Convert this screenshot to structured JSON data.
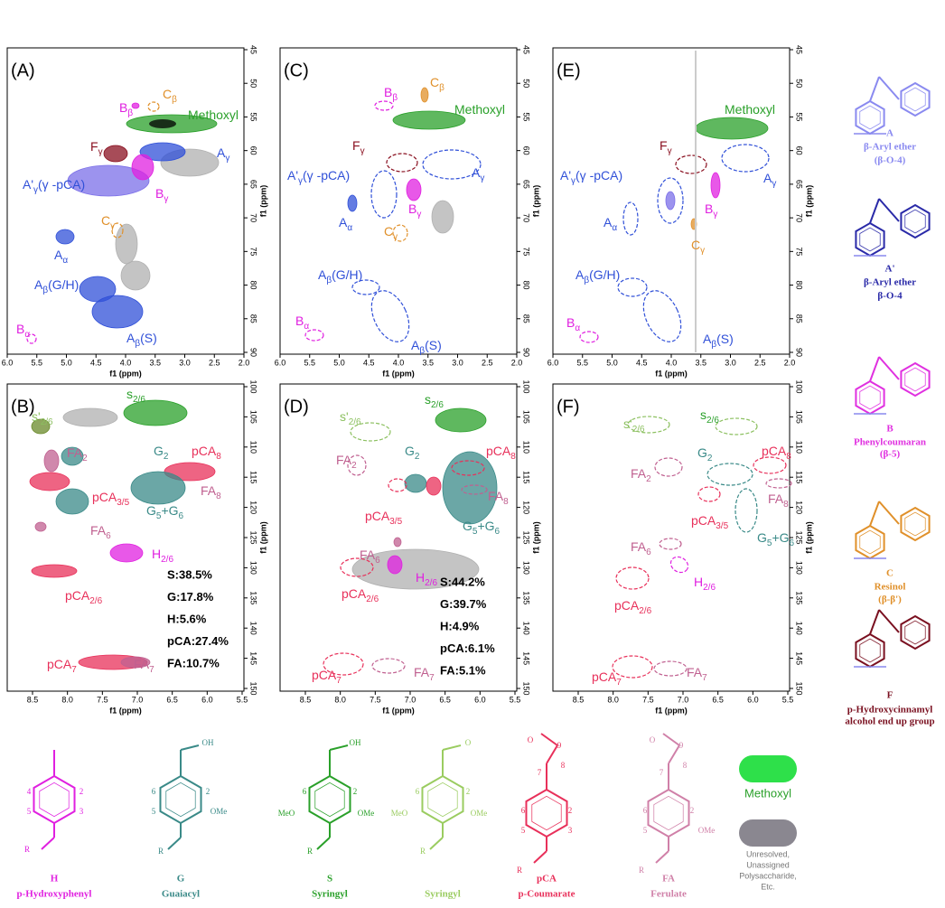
{
  "axes": {
    "label": "f1 (ppm)",
    "top_x": [
      "6.0",
      "5.5",
      "5.0",
      "4.5",
      "4.0",
      "3.5",
      "3.0",
      "2.5",
      "2.0"
    ],
    "top_y": [
      "45",
      "50",
      "55",
      "60",
      "65",
      "70",
      "75",
      "80",
      "85",
      "90"
    ],
    "bottom_x": [
      "8.5",
      "8.0",
      "7.5",
      "7.0",
      "6.5",
      "6.0",
      "5.5"
    ],
    "bottom_y": [
      "100",
      "105",
      "110",
      "115",
      "120",
      "125",
      "130",
      "135",
      "140",
      "145",
      "150"
    ]
  },
  "panels": [
    {
      "letter": "(A)",
      "labels": [
        [
          "C",
          "β"
        ],
        [
          "B",
          "β"
        ],
        [
          "Methoxyl"
        ],
        [
          "F",
          "γ"
        ],
        [
          "A",
          "γ"
        ],
        [
          "A'",
          "γ",
          "(γ -pCA)"
        ],
        [
          "B",
          "γ"
        ],
        [
          "C",
          "γ"
        ],
        [
          "A",
          "α"
        ],
        [
          "A",
          "β",
          "(G/H)"
        ],
        [
          "A",
          "β",
          "(S)"
        ],
        [
          "B",
          "α"
        ]
      ]
    },
    {
      "letter": "(B)",
      "labels": [
        [
          "s'",
          "2/6"
        ],
        [
          "s",
          "2/6"
        ],
        [
          "FA",
          "2"
        ],
        [
          "G",
          "2"
        ],
        [
          "pCA",
          "8"
        ],
        [
          "pCA",
          "3/5"
        ],
        [
          "FA",
          "8"
        ],
        [
          "G",
          "5",
          "+G",
          "6"
        ],
        [
          "FA",
          "6"
        ],
        [
          "H",
          "2/6"
        ],
        [
          "pCA",
          "2/6"
        ],
        [
          "pCA",
          "7"
        ],
        [
          "FA",
          "7"
        ]
      ],
      "composition": [
        "S:38.5%",
        "G:17.8%",
        "H:5.6%",
        "pCA:27.4%",
        "FA:10.7%"
      ]
    },
    {
      "letter": "(C)",
      "labels": [
        [
          "C",
          "β"
        ],
        [
          "B",
          "β"
        ],
        [
          "Methoxyl"
        ],
        [
          "F",
          "γ"
        ],
        [
          "A",
          "γ"
        ],
        [
          "A'",
          "γ",
          "(γ -pCA)"
        ],
        [
          "B",
          "γ"
        ],
        [
          "C",
          "γ"
        ],
        [
          "A",
          "α"
        ],
        [
          "A",
          "β",
          "(G/H)"
        ],
        [
          "A",
          "β",
          "(S)"
        ],
        [
          "B",
          "α"
        ]
      ]
    },
    {
      "letter": "(D)",
      "labels": [
        [
          "s'",
          "2/6"
        ],
        [
          "s",
          "2/6"
        ],
        [
          "FA",
          "2"
        ],
        [
          "G",
          "2"
        ],
        [
          "pCA",
          "8"
        ],
        [
          "pCA",
          "3/5"
        ],
        [
          "FA",
          "8"
        ],
        [
          "G",
          "5",
          "+G",
          "6"
        ],
        [
          "FA",
          "6"
        ],
        [
          "H",
          "2/6"
        ],
        [
          "pCA",
          "2/6"
        ],
        [
          "pCA",
          "7"
        ],
        [
          "FA",
          "7"
        ]
      ],
      "composition": [
        "S:44.2%",
        "G:39.7%",
        "H:4.9%",
        "pCA:6.1%",
        "FA:5.1%"
      ]
    },
    {
      "letter": "(E)",
      "labels": [
        [
          "Methoxyl"
        ],
        [
          "F",
          "γ"
        ],
        [
          "A",
          "γ"
        ],
        [
          "A'",
          "γ",
          "(γ -pCA)"
        ],
        [
          "B",
          "γ"
        ],
        [
          "C",
          "γ"
        ],
        [
          "A",
          "α"
        ],
        [
          "A",
          "β",
          "(G/H)"
        ],
        [
          "A",
          "β",
          "(S)"
        ],
        [
          "B",
          "α"
        ]
      ]
    },
    {
      "letter": "(F)",
      "labels": [
        [
          "s'",
          "2/6"
        ],
        [
          "s",
          "2/6"
        ],
        [
          "FA",
          "2"
        ],
        [
          "G",
          "2"
        ],
        [
          "pCA",
          "8"
        ],
        [
          "pCA",
          "3/5"
        ],
        [
          "FA",
          "8"
        ],
        [
          "G",
          "5",
          "+G",
          "6"
        ],
        [
          "FA",
          "6"
        ],
        [
          "H",
          "2/6"
        ],
        [
          "pCA",
          "2/6"
        ],
        [
          "pCA",
          "7"
        ],
        [
          "FA",
          "7"
        ]
      ]
    }
  ],
  "structures_right": [
    {
      "letter": "A",
      "name": [
        "β-Aryl ether",
        "(β-O-4)"
      ],
      "color": "#8a8af0"
    },
    {
      "letter": "A'",
      "name": [
        "β-Aryl ether",
        "β-O-4"
      ],
      "color": "#2a2aa8"
    },
    {
      "letter": "B",
      "name": [
        "Phenylcoumaran",
        "(β-5)"
      ],
      "color": "#e030e0"
    },
    {
      "letter": "C",
      "name": [
        "Resinol",
        "(β-β')"
      ],
      "color": "#e0902a"
    },
    {
      "letter": "F",
      "name": [
        "p-Hydroxycinnamyl",
        "alcohol end up group"
      ],
      "color": "#7a1020"
    }
  ],
  "structures_bottom": [
    {
      "letter": "H",
      "name": "p-Hydroxyphenyl",
      "color": "#e020e0",
      "atoms": [
        "4",
        "2",
        "5",
        "3",
        "R"
      ]
    },
    {
      "letter": "G",
      "name": "Guaiacyl",
      "color": "#3a8a88",
      "atoms": [
        "OH",
        "6",
        "2",
        "5",
        "OMe",
        "R"
      ]
    },
    {
      "letter": "S",
      "name": "Syringyl",
      "color": "#2aa02a",
      "atoms": [
        "OH",
        "6",
        "2",
        "MeO",
        "OMe",
        "R"
      ]
    },
    {
      "name": "Syringyl",
      "color": "#9acc60",
      "atoms": [
        "O",
        "6",
        "2",
        "MeO",
        "OMe",
        "R"
      ]
    },
    {
      "letter": "pCA",
      "name": "p-Coumarate",
      "color": "#e8305a",
      "atoms": [
        "O",
        "9",
        "8",
        "7",
        "6",
        "2",
        "5",
        "3",
        "R"
      ]
    },
    {
      "letter": "FA",
      "name": "Ferulate",
      "color": "#d080a8",
      "atoms": [
        "O",
        "9",
        "8",
        "7",
        "6",
        "2",
        "5",
        "OMe",
        "R"
      ]
    }
  ],
  "legend": [
    {
      "label": [
        "Methoxyl"
      ],
      "color": "#2ee04a"
    },
    {
      "label": [
        "Unresolved,",
        "Unassigned",
        "Polysaccharide,",
        "Etc."
      ],
      "color": "#8a8790"
    }
  ]
}
